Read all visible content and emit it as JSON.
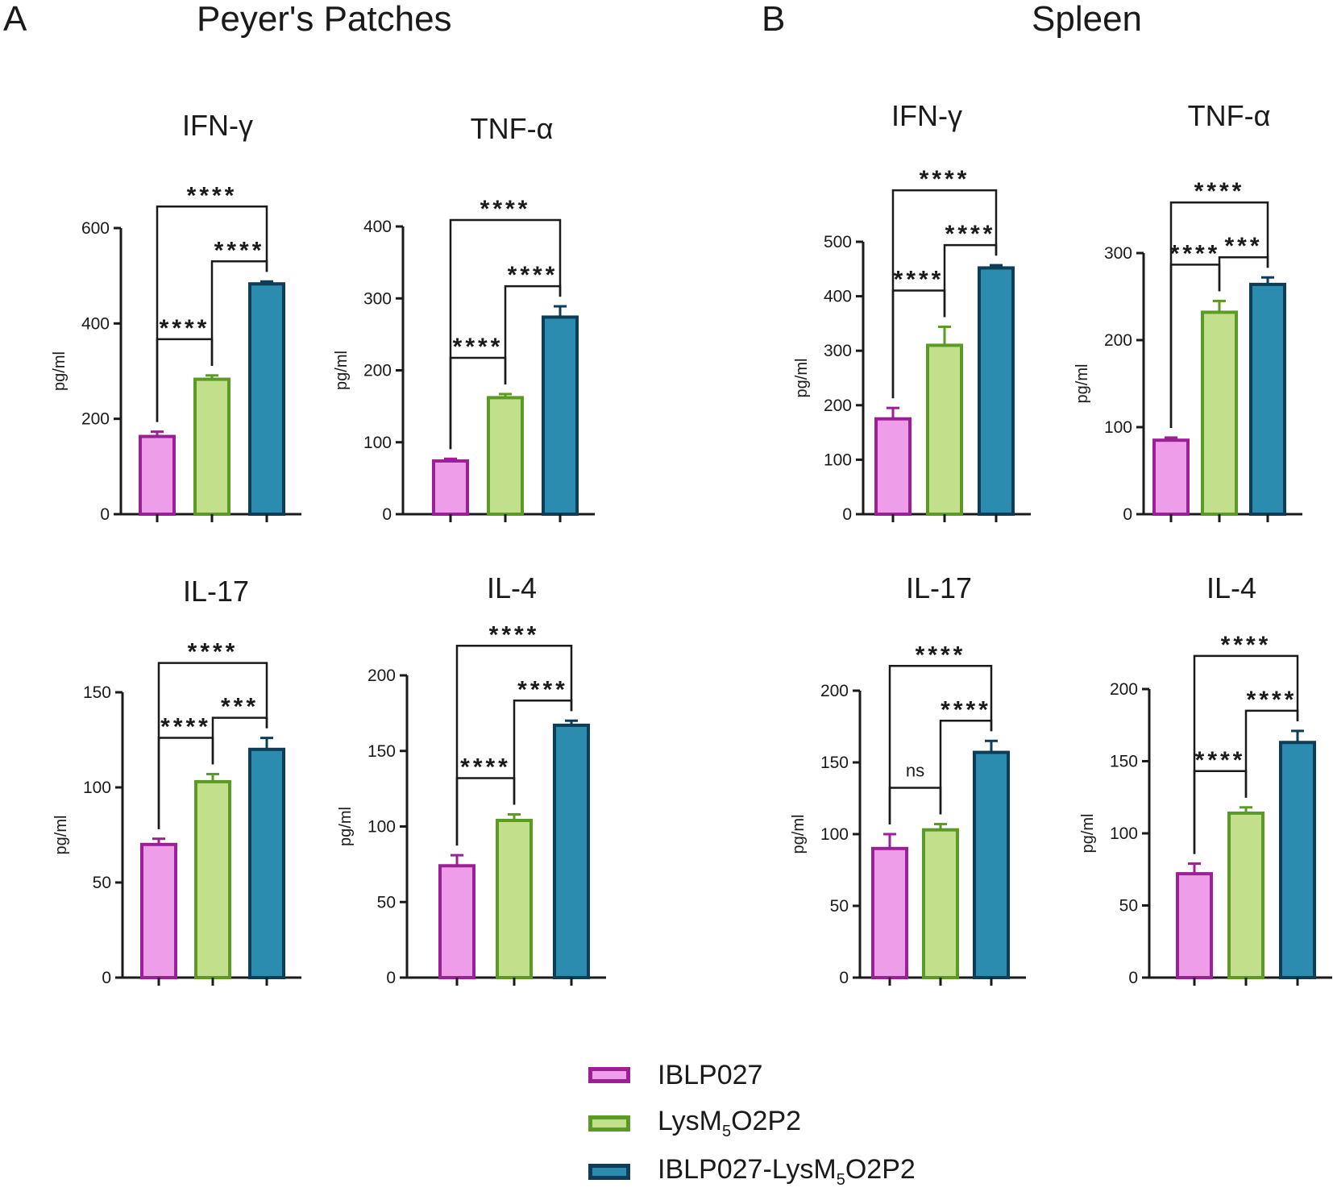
{
  "figure": {
    "panel_a_letter": "A",
    "panel_a_title": "Peyer's  Patches",
    "panel_b_letter": "B",
    "panel_b_title": "Spleen"
  },
  "legend": {
    "items": [
      {
        "label": "IBLP027",
        "pre": "IBLP027",
        "sub": "",
        "post": "",
        "fill": "#ee9ee8",
        "stroke": "#9c2095"
      },
      {
        "label": "LysM5O2P2",
        "pre": "LysM",
        "sub": "5",
        "post": "O2P2",
        "fill": "#c2e08c",
        "stroke": "#5b9a25"
      },
      {
        "label": "IBLP027-LysM5O2P2",
        "pre": "IBLP027-LysM",
        "sub": "5",
        "post": "O2P2",
        "fill": "#2b8caf",
        "stroke": "#0d3d57"
      }
    ]
  },
  "chart_data": [
    {
      "panel": "A",
      "type": "bar",
      "title": "IFN-γ",
      "ylabel": "pg/ml",
      "ylim": [
        0,
        600
      ],
      "yticks": [
        0,
        200,
        400,
        600
      ],
      "categories": [
        "IBLP027",
        "LysM5O2P2",
        "IBLP027-LysM5O2P2"
      ],
      "values": [
        163,
        283,
        483
      ],
      "errors": [
        10,
        8,
        5
      ],
      "comparisons": [
        {
          "from": 0,
          "to": 2,
          "label": "****"
        },
        {
          "from": 1,
          "to": 2,
          "label": "****"
        },
        {
          "from": 0,
          "to": 1,
          "label": "****"
        }
      ]
    },
    {
      "panel": "A",
      "type": "bar",
      "title": "TNF-α",
      "ylabel": "pg/ml",
      "ylim": [
        0,
        400
      ],
      "yticks": [
        0,
        100,
        200,
        300,
        400
      ],
      "categories": [
        "IBLP027",
        "LysM5O2P2",
        "IBLP027-LysM5O2P2"
      ],
      "values": [
        74,
        162,
        274
      ],
      "errors": [
        3,
        5,
        15
      ],
      "comparisons": [
        {
          "from": 0,
          "to": 2,
          "label": "****"
        },
        {
          "from": 1,
          "to": 2,
          "label": "****"
        },
        {
          "from": 0,
          "to": 1,
          "label": "****"
        }
      ]
    },
    {
      "panel": "B",
      "type": "bar",
      "title": "IFN-γ",
      "ylabel": "pg/ml",
      "ylim": [
        0,
        500
      ],
      "yticks": [
        0,
        100,
        200,
        300,
        400,
        500
      ],
      "categories": [
        "IBLP027",
        "LysM5O2P2",
        "IBLP027-LysM5O2P2"
      ],
      "values": [
        175,
        310,
        452
      ],
      "errors": [
        20,
        34,
        5
      ],
      "comparisons": [
        {
          "from": 0,
          "to": 2,
          "label": "****"
        },
        {
          "from": 1,
          "to": 2,
          "label": "****"
        },
        {
          "from": 0,
          "to": 1,
          "label": "****"
        }
      ]
    },
    {
      "panel": "B",
      "type": "bar",
      "title": "TNF-α",
      "ylabel": "pg/ml",
      "ylim": [
        0,
        300
      ],
      "yticks": [
        0,
        100,
        200,
        300
      ],
      "categories": [
        "IBLP027",
        "LysM5O2P2",
        "IBLP027-LysM5O2P2"
      ],
      "values": [
        85,
        232,
        264
      ],
      "errors": [
        3,
        13,
        8
      ],
      "comparisons": [
        {
          "from": 0,
          "to": 2,
          "label": "****"
        },
        {
          "from": 1,
          "to": 2,
          "label": "***"
        },
        {
          "from": 0,
          "to": 1,
          "label": "****"
        }
      ]
    },
    {
      "panel": "A",
      "type": "bar",
      "title": "IL-17",
      "ylabel": "pg/ml",
      "ylim": [
        0,
        150
      ],
      "yticks": [
        0,
        50,
        100,
        150
      ],
      "categories": [
        "IBLP027",
        "LysM5O2P2",
        "IBLP027-LysM5O2P2"
      ],
      "values": [
        70,
        103,
        120
      ],
      "errors": [
        3,
        4,
        6
      ],
      "comparisons": [
        {
          "from": 0,
          "to": 2,
          "label": "****"
        },
        {
          "from": 1,
          "to": 2,
          "label": "***"
        },
        {
          "from": 0,
          "to": 1,
          "label": "****"
        }
      ]
    },
    {
      "panel": "A",
      "type": "bar",
      "title": "IL-4",
      "ylabel": "pg/ml",
      "ylim": [
        0,
        200
      ],
      "yticks": [
        0,
        50,
        100,
        150,
        200
      ],
      "categories": [
        "IBLP027",
        "LysM5O2P2",
        "IBLP027-LysM5O2P2"
      ],
      "values": [
        74,
        104,
        167
      ],
      "errors": [
        7,
        4,
        3
      ],
      "comparisons": [
        {
          "from": 0,
          "to": 2,
          "label": "****"
        },
        {
          "from": 1,
          "to": 2,
          "label": "****"
        },
        {
          "from": 0,
          "to": 1,
          "label": "****"
        }
      ]
    },
    {
      "panel": "B",
      "type": "bar",
      "title": "IL-17",
      "ylabel": "pg/ml",
      "ylim": [
        0,
        200
      ],
      "yticks": [
        0,
        50,
        100,
        150,
        200
      ],
      "categories": [
        "IBLP027",
        "LysM5O2P2",
        "IBLP027-LysM5O2P2"
      ],
      "values": [
        90,
        103,
        157
      ],
      "errors": [
        10,
        4,
        8
      ],
      "comparisons": [
        {
          "from": 0,
          "to": 2,
          "label": "****"
        },
        {
          "from": 1,
          "to": 2,
          "label": "****"
        },
        {
          "from": 0,
          "to": 1,
          "label": "ns"
        }
      ]
    },
    {
      "panel": "B",
      "type": "bar",
      "title": "IL-4",
      "ylabel": "pg/ml",
      "ylim": [
        0,
        200
      ],
      "yticks": [
        0,
        50,
        100,
        150,
        200
      ],
      "categories": [
        "IBLP027",
        "LysM5O2P2",
        "IBLP027-LysM5O2P2"
      ],
      "values": [
        72,
        114,
        163
      ],
      "errors": [
        7,
        4,
        8
      ],
      "comparisons": [
        {
          "from": 0,
          "to": 2,
          "label": "****"
        },
        {
          "from": 1,
          "to": 2,
          "label": "****"
        },
        {
          "from": 0,
          "to": 1,
          "label": "****"
        }
      ]
    }
  ]
}
